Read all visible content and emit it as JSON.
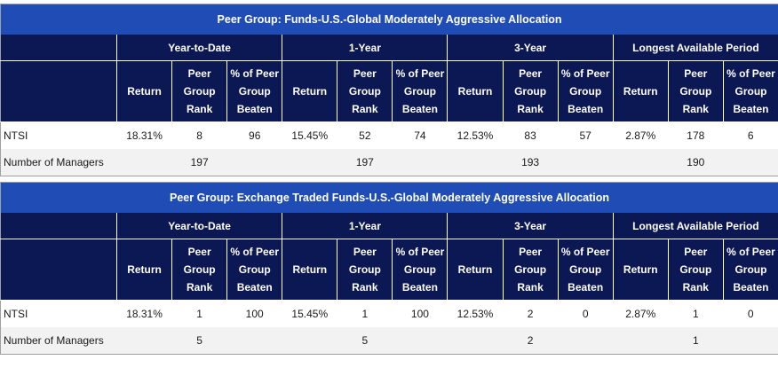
{
  "tables": [
    {
      "title": "Peer Group: Funds-U.S.-Global Moderately Aggressive Allocation",
      "periods": [
        "Year-to-Date",
        "1-Year",
        "3-Year",
        "Longest Available Period"
      ],
      "columns": [
        "Return",
        "Peer Group Rank",
        "% of Peer Group Beaten"
      ],
      "rows": [
        {
          "label": "NTSI",
          "values": [
            "18.31%",
            "8",
            "96",
            "15.45%",
            "52",
            "74",
            "12.53%",
            "83",
            "57",
            "2.87%",
            "178",
            "6"
          ]
        }
      ],
      "managers": {
        "label": "Number of Managers",
        "values": [
          "197",
          "197",
          "193",
          "190"
        ]
      }
    },
    {
      "title": "Peer Group: Exchange Traded Funds-U.S.-Global Moderately Aggressive Allocation",
      "periods": [
        "Year-to-Date",
        "1-Year",
        "3-Year",
        "Longest Available Period"
      ],
      "columns": [
        "Return",
        "Peer Group Rank",
        "% of Peer Group Beaten"
      ],
      "rows": [
        {
          "label": "NTSI",
          "values": [
            "18.31%",
            "1",
            "100",
            "15.45%",
            "1",
            "100",
            "12.53%",
            "2",
            "0",
            "2.87%",
            "1",
            "0"
          ]
        }
      ],
      "managers": {
        "label": "Number of Managers",
        "values": [
          "5",
          "5",
          "2",
          "1"
        ]
      }
    }
  ]
}
